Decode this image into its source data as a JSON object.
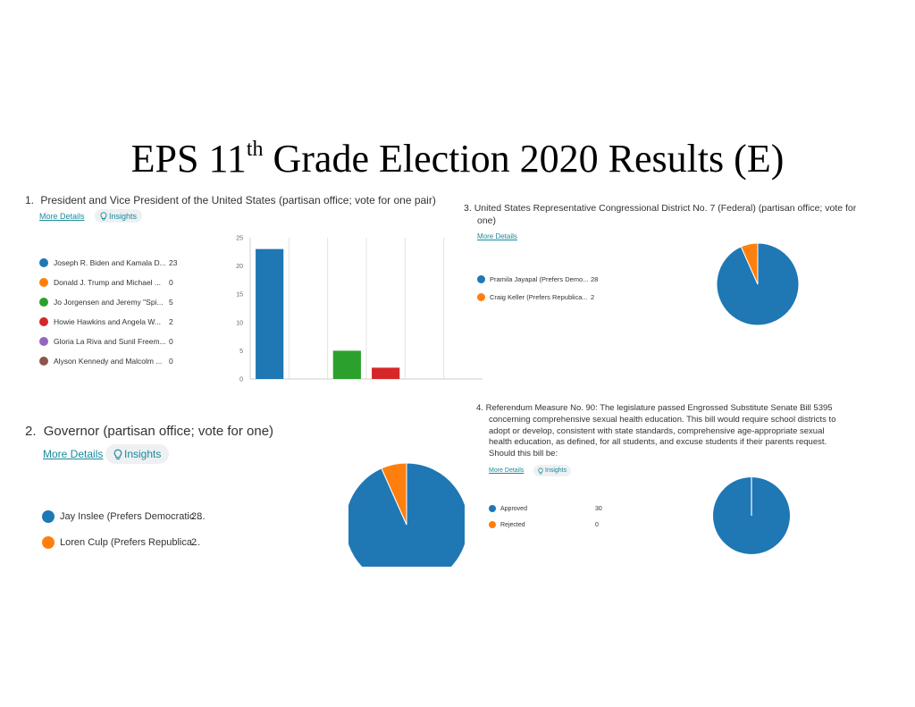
{
  "page": {
    "title_pre": "EPS 11",
    "title_sup": "th",
    "title_post": " Grade Election 2020 Results (E)"
  },
  "questions": [
    {
      "number": "1.",
      "text": "President and Vice President of the United States (partisan office; vote for one pair)",
      "more_details": "More Details",
      "insights": "Insights",
      "options": [
        {
          "label": "Joseph R. Biden and Kamala D...",
          "value": "23",
          "color": "#1f77b4"
        },
        {
          "label": "Donald J. Trump and Michael ...",
          "value": "0",
          "color": "#ff7f0e"
        },
        {
          "label": "Jo Jorgensen and Jeremy \"Spi...",
          "value": "5",
          "color": "#2ca02c"
        },
        {
          "label": "Howie Hawkins and Angela W...",
          "value": "2",
          "color": "#d62728"
        },
        {
          "label": "Gloria La Riva and Sunil Freem...",
          "value": "0",
          "color": "#9467bd"
        },
        {
          "label": "Alyson Kennedy and Malcolm ...",
          "value": "0",
          "color": "#8c564b"
        }
      ]
    },
    {
      "number": "2.",
      "text": "Governor (partisan office; vote for one)",
      "more_details": "More Details",
      "insights": "Insights",
      "options": [
        {
          "label": "Jay Inslee (Prefers Democratic ...",
          "value": "28",
          "color": "#1f77b4"
        },
        {
          "label": "Loren Culp (Prefers Republica...",
          "value": "2",
          "color": "#ff7f0e"
        }
      ]
    },
    {
      "number": "3.",
      "text_line1": "United States Representative Congressional District No. 7 (Federal) (partisan office; vote for",
      "text_line2": "one)",
      "more_details": "More Details",
      "options": [
        {
          "label": "Pramila Jayapal (Prefers Demo...",
          "value": "28",
          "color": "#1f77b4"
        },
        {
          "label": "Craig Keller (Prefers Republica...",
          "value": "2",
          "color": "#ff7f0e"
        }
      ]
    },
    {
      "number": "4.",
      "text_lines": [
        "Referendum Measure No. 90: The legislature passed Engrossed Substitute Senate Bill 5395",
        "concerning comprehensive sexual health education. This bill would require school districts to",
        "adopt or develop, consistent with state standards, comprehensive age-appropriate sexual",
        "health education, as defined, for all students, and excuse students if their parents request.",
        "Should this bill be:"
      ],
      "more_details": "More Details",
      "insights": "Insights",
      "options": [
        {
          "label": "Approved",
          "value": "30",
          "color": "#1f77b4"
        },
        {
          "label": "Rejected",
          "value": "0",
          "color": "#ff7f0e"
        }
      ]
    }
  ],
  "chart_data": [
    {
      "type": "bar",
      "categories": [
        "Joseph R. Biden and Kamala D...",
        "Donald J. Trump and Michael ...",
        "Jo Jorgensen and Jeremy \"Spi...",
        "Howie Hawkins and Angela W...",
        "Gloria La Riva and Sunil Freem...",
        "Alyson Kennedy and Malcolm ..."
      ],
      "values": [
        23,
        0,
        5,
        2,
        0,
        0
      ],
      "colors": [
        "#1f77b4",
        "#ff7f0e",
        "#2ca02c",
        "#d62728",
        "#9467bd",
        "#8c564b"
      ],
      "yticks": [
        "0",
        "5",
        "10",
        "15",
        "20",
        "25"
      ],
      "ylim": [
        0,
        25
      ],
      "grid": "vertical"
    },
    {
      "type": "pie",
      "categories": [
        "Jay Inslee (Prefers Democratic ...",
        "Loren Culp (Prefers Republica..."
      ],
      "values": [
        28,
        2
      ],
      "colors": [
        "#1f77b4",
        "#ff7f0e"
      ]
    },
    {
      "type": "pie",
      "categories": [
        "Pramila Jayapal (Prefers Demo...",
        "Craig Keller (Prefers Republica..."
      ],
      "values": [
        28,
        2
      ],
      "colors": [
        "#1f77b4",
        "#ff7f0e"
      ]
    },
    {
      "type": "pie",
      "categories": [
        "Approved",
        "Rejected"
      ],
      "values": [
        30,
        0
      ],
      "colors": [
        "#1f77b4",
        "#ff7f0e"
      ]
    }
  ]
}
